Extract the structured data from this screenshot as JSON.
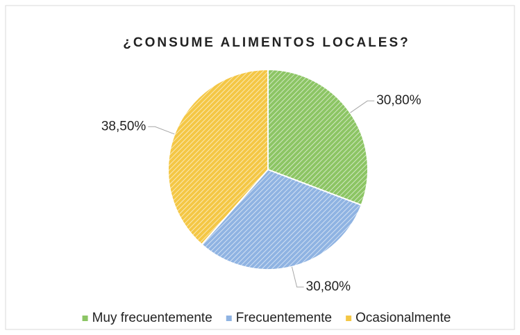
{
  "chart_data": {
    "type": "pie",
    "title": "¿CONSUME ALIMENTOS LOCALES?",
    "categories": [
      "Muy frecuentemente",
      "Frecuentemente",
      "Ocasionalmente"
    ],
    "values": [
      30.8,
      30.8,
      38.5
    ],
    "value_labels": [
      "30,80%",
      "30,80%",
      "38,50%"
    ],
    "colors": [
      "#8cc564",
      "#8fb3e2",
      "#f4c745"
    ],
    "legend": "bottom"
  }
}
